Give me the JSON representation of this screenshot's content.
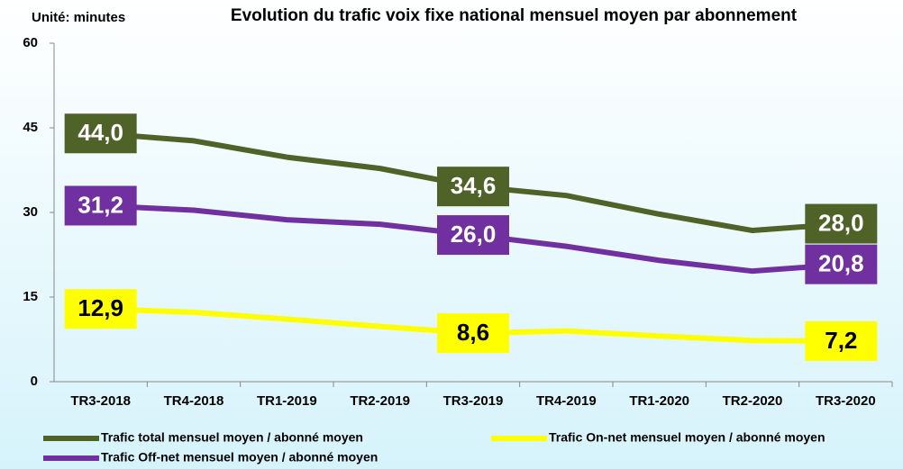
{
  "chart_data": {
    "type": "line",
    "title": "Evolution du trafic voix fixe national mensuel moyen par abonnement",
    "unit_label": "Unité: minutes",
    "categories": [
      "TR3-2018",
      "TR4-2018",
      "TR1-2019",
      "TR2-2019",
      "TR3-2019",
      "TR4-2019",
      "TR1-2020",
      "TR2-2020",
      "TR3-2020"
    ],
    "series": [
      {
        "name": "Trafic total mensuel moyen / abonné moyen",
        "color": "#4f6228",
        "values": [
          44.0,
          42.7,
          39.8,
          37.8,
          34.6,
          33.0,
          29.7,
          26.8,
          28.0
        ],
        "value_labels": [
          "44,0",
          null,
          null,
          null,
          "34,6",
          null,
          null,
          null,
          "28,0"
        ]
      },
      {
        "name": "Trafic On-net mensuel moyen / abonné moyen",
        "color": "#ffff00",
        "values": [
          12.9,
          12.3,
          11.1,
          9.8,
          8.6,
          9.0,
          8.1,
          7.3,
          7.2
        ],
        "value_labels": [
          "12,9",
          null,
          null,
          null,
          "8,6",
          null,
          null,
          null,
          "7,2"
        ]
      },
      {
        "name": "Trafic Off-net mensuel moyen / abonné moyen",
        "color": "#7030a0",
        "values": [
          31.2,
          30.4,
          28.7,
          27.9,
          26.0,
          24.0,
          21.5,
          19.6,
          20.8
        ],
        "value_labels": [
          "31,2",
          null,
          null,
          null,
          "26,0",
          null,
          null,
          null,
          "20,8"
        ]
      }
    ],
    "ylim": [
      0,
      60
    ],
    "yticks": [
      0,
      15,
      30,
      45,
      60
    ],
    "grid": false
  }
}
